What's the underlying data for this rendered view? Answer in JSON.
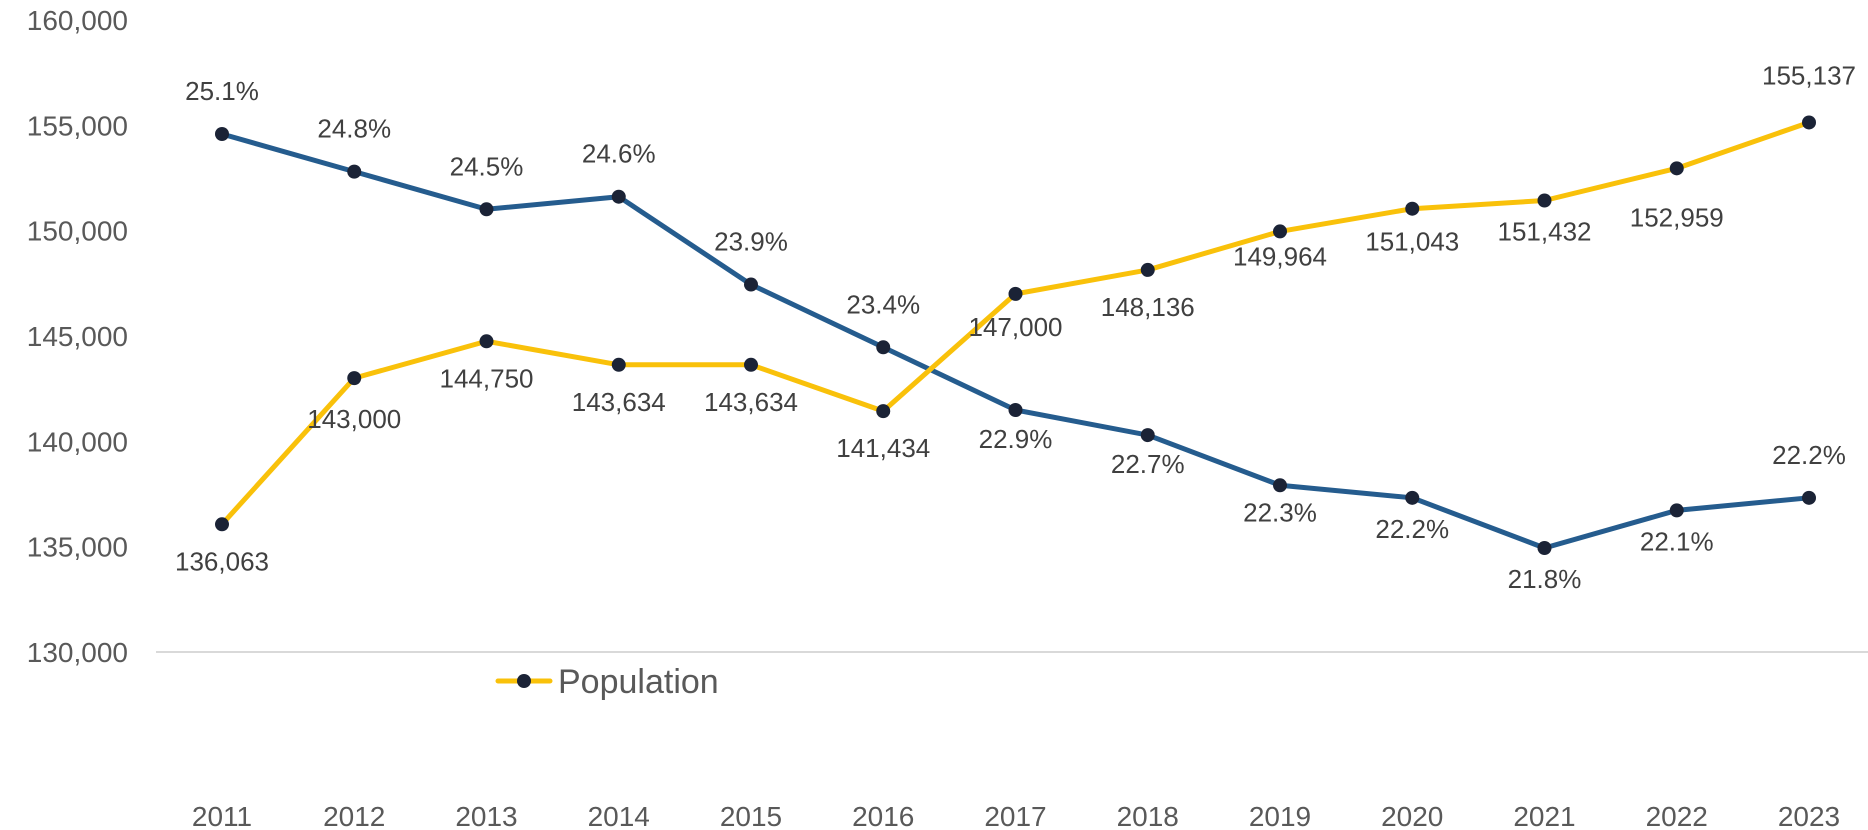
{
  "chart_data": {
    "type": "line",
    "title": "",
    "xlabel": "",
    "ylabel": "",
    "categories": [
      "2011",
      "2012",
      "2013",
      "2014",
      "2015",
      "2016",
      "2017",
      "2018",
      "2019",
      "2020",
      "2021",
      "2022",
      "2023"
    ],
    "ylim": [
      130000,
      160000
    ],
    "y_ticks": [
      130000,
      135000,
      140000,
      145000,
      150000,
      155000,
      160000
    ],
    "y_tick_labels": [
      "130,000",
      "135,000",
      "140,000",
      "145,000",
      "150,000",
      "155,000",
      "160,000"
    ],
    "grid": false,
    "legend": {
      "position": "bottom-left",
      "entries": [
        "Population"
      ]
    },
    "colors": {
      "population": "#F9C10A",
      "percentage": "#255C8E",
      "marker": "#1B2336",
      "axis": "#D9D9D9",
      "tick_text": "#595959",
      "label_text": "#404040"
    },
    "series": [
      {
        "name": "Population",
        "color": "#F9C10A",
        "values": [
          136063,
          143000,
          144750,
          143634,
          143634,
          141434,
          147000,
          148136,
          149964,
          151043,
          151432,
          152959,
          155137
        ],
        "labels": [
          "136,063",
          "143,000",
          "144,750",
          "143,634",
          "143,634",
          "141,434",
          "147,000",
          "148,136",
          "149,964",
          "151,043",
          "151,432",
          "152,959",
          "155,137"
        ]
      },
      {
        "color": "#255C8E",
        "values": [
          25.1,
          24.8,
          24.5,
          24.6,
          23.9,
          23.4,
          22.9,
          22.7,
          22.3,
          22.2,
          21.8,
          22.1,
          22.2
        ],
        "labels": [
          "25.1%",
          "24.8%",
          "24.5%",
          "24.6%",
          "23.9%",
          "23.4%",
          "22.9%",
          "22.7%",
          "22.3%",
          "22.2%",
          "21.8%",
          "22.1%",
          "22.2%"
        ]
      }
    ]
  }
}
